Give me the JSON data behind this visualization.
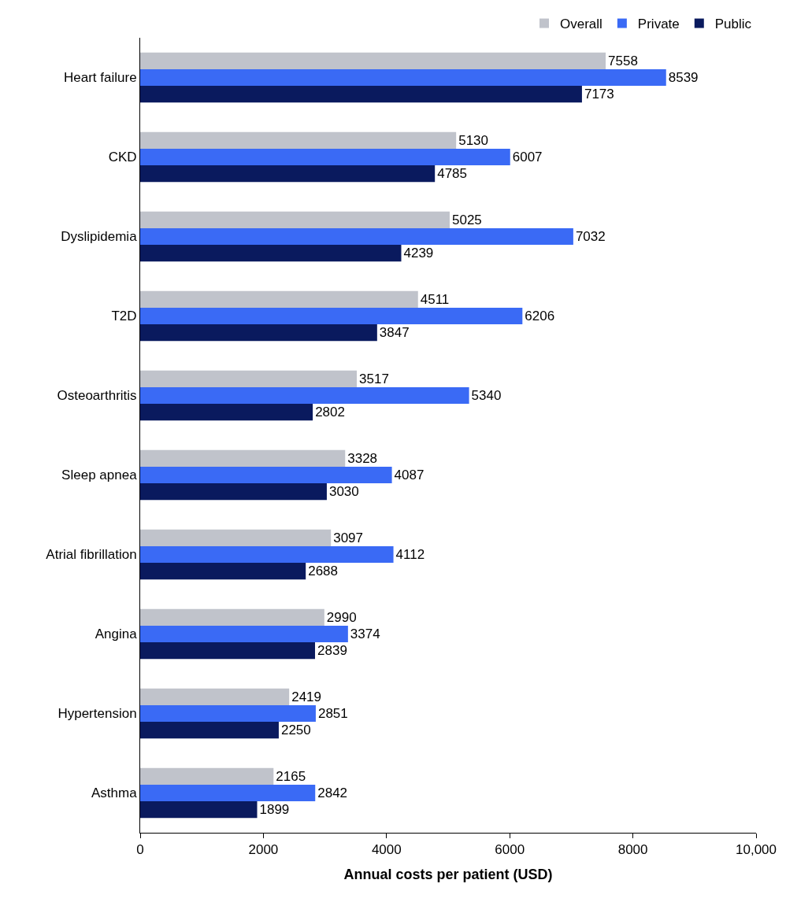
{
  "chart_data": {
    "type": "bar",
    "orientation": "horizontal",
    "xlabel": "Annual costs per patient (USD)",
    "categories": [
      "Heart failure",
      "CKD",
      "Dyslipidemia",
      "T2D",
      "Osteoarthritis",
      "Sleep apnea",
      "Atrial fibrillation",
      "Angina",
      "Hypertension",
      "Asthma"
    ],
    "series": [
      {
        "name": "Overall",
        "color": "#c0c3cb",
        "values": [
          7558,
          5130,
          5025,
          4511,
          3517,
          3328,
          3097,
          2990,
          2419,
          2165
        ]
      },
      {
        "name": "Private",
        "color": "#3a6af5",
        "values": [
          8539,
          6007,
          7032,
          6206,
          5340,
          4087,
          4112,
          3374,
          2851,
          2842
        ]
      },
      {
        "name": "Public",
        "color": "#0a1a5e",
        "values": [
          7173,
          4785,
          4239,
          3847,
          2802,
          3030,
          2688,
          2839,
          2250,
          1899
        ]
      }
    ],
    "xlim": [
      0,
      10000
    ],
    "xticks": [
      0,
      2000,
      4000,
      6000,
      8000,
      {
        "value": 10000,
        "label": "10,000"
      }
    ],
    "data_labels": true,
    "legend": "top right"
  }
}
